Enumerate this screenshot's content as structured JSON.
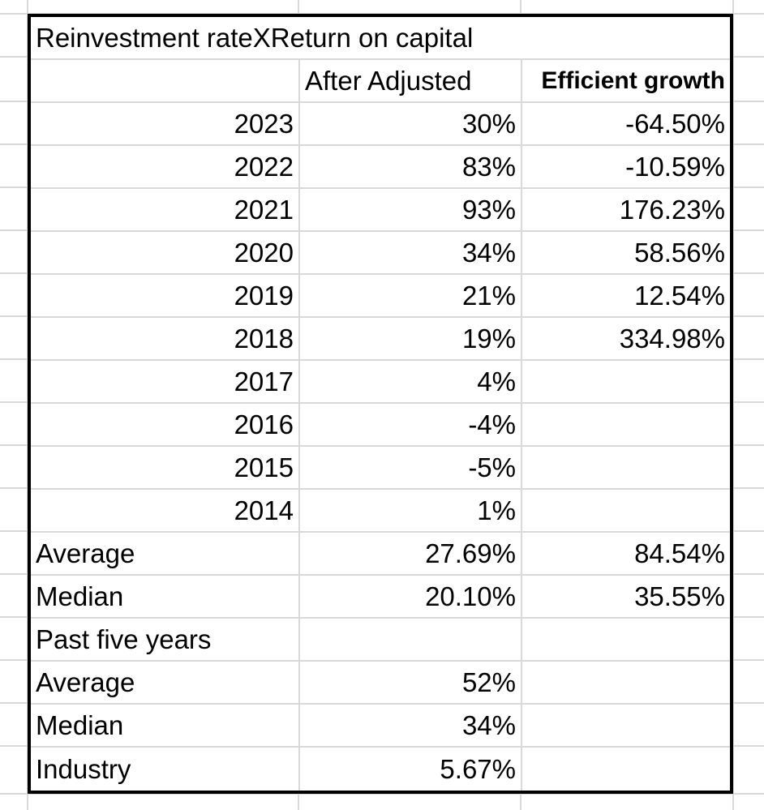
{
  "title": "Reinvestment rateXReturn on capital",
  "headers": {
    "after_adjusted": "After Adjusted",
    "efficient_growth": "Efficient growth"
  },
  "years": [
    {
      "year": "2023",
      "after_adjusted": "30%",
      "efficient_growth": "-64.50%"
    },
    {
      "year": "2022",
      "after_adjusted": "83%",
      "efficient_growth": "-10.59%"
    },
    {
      "year": "2021",
      "after_adjusted": "93%",
      "efficient_growth": "176.23%"
    },
    {
      "year": "2020",
      "after_adjusted": "34%",
      "efficient_growth": "58.56%"
    },
    {
      "year": "2019",
      "after_adjusted": "21%",
      "efficient_growth": "12.54%"
    },
    {
      "year": "2018",
      "after_adjusted": "19%",
      "efficient_growth": "334.98%"
    },
    {
      "year": "2017",
      "after_adjusted": "4%",
      "efficient_growth": ""
    },
    {
      "year": "2016",
      "after_adjusted": "-4%",
      "efficient_growth": ""
    },
    {
      "year": "2015",
      "after_adjusted": "-5%",
      "efficient_growth": ""
    },
    {
      "year": "2014",
      "after_adjusted": "1%",
      "efficient_growth": ""
    }
  ],
  "summary": {
    "average_label": "Average",
    "average_after": "27.69%",
    "average_growth": "84.54%",
    "median_label": "Median",
    "median_after": "20.10%",
    "median_growth": "35.55%"
  },
  "past_five": {
    "label": "Past five years",
    "average_label": "Average",
    "average_value": "52%",
    "median_label": "Median",
    "median_value": "34%",
    "industry_label": "Industry",
    "industry_value": "5.67%"
  }
}
